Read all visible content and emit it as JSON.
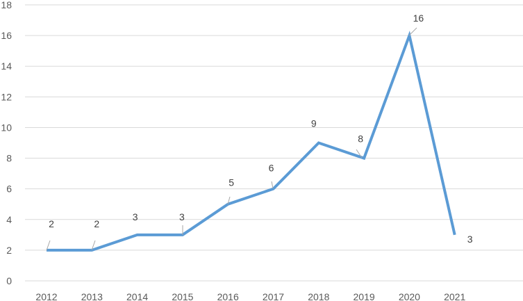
{
  "chart_data": {
    "type": "line",
    "categories": [
      "2012",
      "2013",
      "2014",
      "2015",
      "2016",
      "2017",
      "2018",
      "2019",
      "2020",
      "2021"
    ],
    "series": [
      {
        "values": [
          2,
          2,
          3,
          3,
          5,
          6,
          9,
          8,
          16,
          3
        ],
        "color": "#5b9bd5"
      }
    ],
    "data_labels": [
      "2",
      "2",
      "3",
      "3",
      "5",
      "6",
      "9",
      "8",
      "16",
      "3"
    ],
    "y_ticks": [
      "0",
      "2",
      "4",
      "6",
      "8",
      "10",
      "12",
      "14",
      "16",
      "18"
    ],
    "ylim": [
      0,
      18
    ],
    "grid": true,
    "legend": "none"
  }
}
